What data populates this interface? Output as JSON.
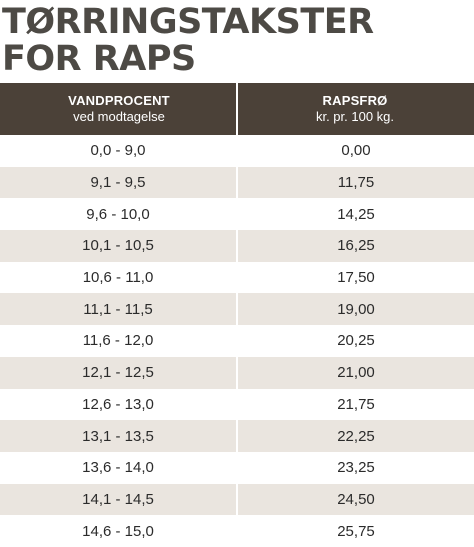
{
  "title": {
    "line1": "TØRRINGSTAKSTER",
    "line2": "FOR RAPS"
  },
  "table": {
    "col1": {
      "header": "VANDPROCENT",
      "sub": "ved modtagelse"
    },
    "col2": {
      "header": "RAPSFRØ",
      "sub": "kr. pr. 100 kg."
    },
    "rows": [
      {
        "range": "0,0 - 9,0",
        "price": "0,00"
      },
      {
        "range": "9,1 - 9,5",
        "price": "11,75"
      },
      {
        "range": "9,6 - 10,0",
        "price": "14,25"
      },
      {
        "range": "10,1 - 10,5",
        "price": "16,25"
      },
      {
        "range": "10,6 - 11,0",
        "price": "17,50"
      },
      {
        "range": "11,1 - 11,5",
        "price": "19,00"
      },
      {
        "range": "11,6 - 12,0",
        "price": "20,25"
      },
      {
        "range": "12,1 - 12,5",
        "price": "21,00"
      },
      {
        "range": "12,6 - 13,0",
        "price": "21,75"
      },
      {
        "range": "13,1 - 13,5",
        "price": "22,25"
      },
      {
        "range": "13,6 - 14,0",
        "price": "23,25"
      },
      {
        "range": "14,1 - 14,5",
        "price": "24,50"
      },
      {
        "range": "14,6 - 15,0",
        "price": "25,75"
      }
    ]
  }
}
